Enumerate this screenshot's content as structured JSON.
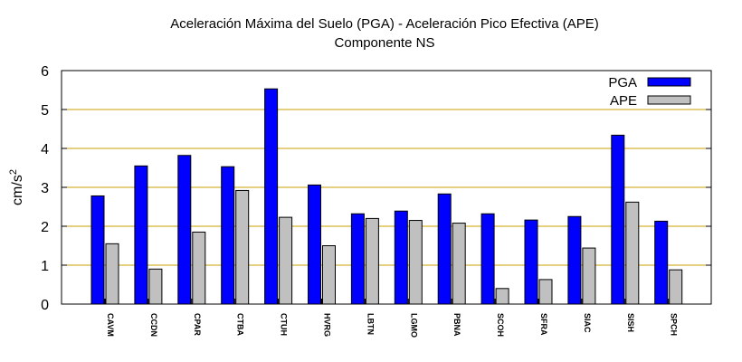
{
  "chart_data": {
    "type": "bar",
    "title": "Aceleración Máxima del Suelo (PGA) -  Aceleración Pico Efectiva (APE)",
    "subtitle": "Componente NS",
    "xlabel": "",
    "ylabel_base": "cm/s",
    "ylabel_exp": "2",
    "ylim": [
      0,
      6
    ],
    "yticks": [
      "0",
      "1",
      "2",
      "3",
      "4",
      "5",
      "6"
    ],
    "grid": true,
    "legend_position": "top-right",
    "categories": [
      "CAVM",
      "CCDN",
      "CPAR",
      "CTBA",
      "CTUH",
      "HVRG",
      "LBTN",
      "LGMO",
      "PBNA",
      "SCOH",
      "SFRA",
      "SIAC",
      "SISH",
      "SPCH"
    ],
    "series": [
      {
        "name": "PGA",
        "color": "#0000ff",
        "values": [
          2.78,
          3.55,
          3.82,
          3.53,
          5.53,
          3.06,
          2.32,
          2.39,
          2.83,
          2.32,
          2.16,
          2.25,
          4.34,
          2.13
        ]
      },
      {
        "name": "APE",
        "color": "#c0c0c0",
        "values": [
          1.55,
          0.9,
          1.85,
          2.92,
          2.23,
          1.5,
          2.2,
          2.15,
          2.08,
          0.4,
          0.63,
          1.44,
          2.62,
          0.88
        ]
      }
    ],
    "gridline_color": "#c8a000"
  }
}
